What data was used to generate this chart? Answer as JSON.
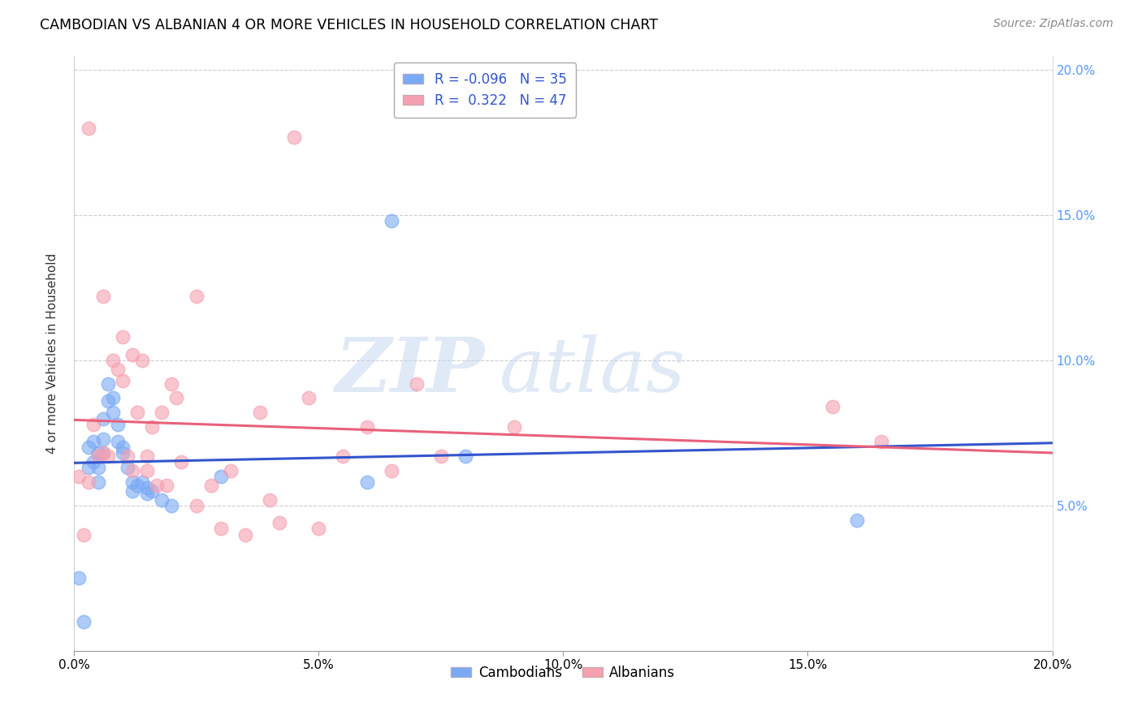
{
  "title": "CAMBODIAN VS ALBANIAN 4 OR MORE VEHICLES IN HOUSEHOLD CORRELATION CHART",
  "source": "Source: ZipAtlas.com",
  "ylabel": "4 or more Vehicles in Household",
  "xlabel_ticks": [
    "0.0%",
    "5.0%",
    "10.0%",
    "15.0%",
    "20.0%"
  ],
  "ylabel_ticks_right": [
    "5.0%",
    "10.0%",
    "15.0%",
    "20.0%"
  ],
  "ylabel_ticks_right_vals": [
    0.05,
    0.1,
    0.15,
    0.2
  ],
  "x_tick_vals": [
    0.0,
    0.05,
    0.1,
    0.15,
    0.2
  ],
  "xlim": [
    0.0,
    0.2
  ],
  "ylim": [
    0.0,
    0.205
  ],
  "cambodian_R": -0.096,
  "cambodian_N": 35,
  "albanian_R": 0.322,
  "albanian_N": 47,
  "cambodian_color": "#7aaaf5",
  "albanian_color": "#f5a0b0",
  "cambodian_line_color": "#3355cc",
  "albanian_line_color": "#e8607a",
  "right_axis_color": "#5599ff",
  "watermark_zip": "ZIP",
  "watermark_atlas": "atlas",
  "cambodian_x": [
    0.001,
    0.002,
    0.003,
    0.003,
    0.004,
    0.004,
    0.005,
    0.005,
    0.005,
    0.006,
    0.006,
    0.006,
    0.007,
    0.007,
    0.008,
    0.008,
    0.009,
    0.009,
    0.01,
    0.01,
    0.011,
    0.012,
    0.012,
    0.013,
    0.014,
    0.015,
    0.015,
    0.016,
    0.018,
    0.02,
    0.03,
    0.06,
    0.065,
    0.08,
    0.16
  ],
  "cambodian_y": [
    0.025,
    0.01,
    0.07,
    0.063,
    0.072,
    0.065,
    0.068,
    0.063,
    0.058,
    0.08,
    0.073,
    0.068,
    0.092,
    0.086,
    0.082,
    0.087,
    0.078,
    0.072,
    0.068,
    0.07,
    0.063,
    0.058,
    0.055,
    0.057,
    0.058,
    0.056,
    0.054,
    0.055,
    0.052,
    0.05,
    0.06,
    0.058,
    0.148,
    0.067,
    0.045
  ],
  "albanian_x": [
    0.001,
    0.002,
    0.003,
    0.004,
    0.005,
    0.006,
    0.006,
    0.007,
    0.008,
    0.009,
    0.01,
    0.01,
    0.011,
    0.012,
    0.012,
    0.013,
    0.014,
    0.015,
    0.015,
    0.016,
    0.017,
    0.018,
    0.019,
    0.02,
    0.021,
    0.022,
    0.025,
    0.025,
    0.028,
    0.03,
    0.032,
    0.035,
    0.038,
    0.04,
    0.042,
    0.045,
    0.048,
    0.05,
    0.055,
    0.06,
    0.065,
    0.07,
    0.075,
    0.09,
    0.155,
    0.165,
    0.003
  ],
  "albanian_y": [
    0.06,
    0.04,
    0.058,
    0.078,
    0.067,
    0.122,
    0.068,
    0.067,
    0.1,
    0.097,
    0.093,
    0.108,
    0.067,
    0.102,
    0.062,
    0.082,
    0.1,
    0.067,
    0.062,
    0.077,
    0.057,
    0.082,
    0.057,
    0.092,
    0.087,
    0.065,
    0.122,
    0.05,
    0.057,
    0.042,
    0.062,
    0.04,
    0.082,
    0.052,
    0.044,
    0.177,
    0.087,
    0.042,
    0.067,
    0.077,
    0.062,
    0.092,
    0.067,
    0.077,
    0.084,
    0.072,
    0.18
  ]
}
